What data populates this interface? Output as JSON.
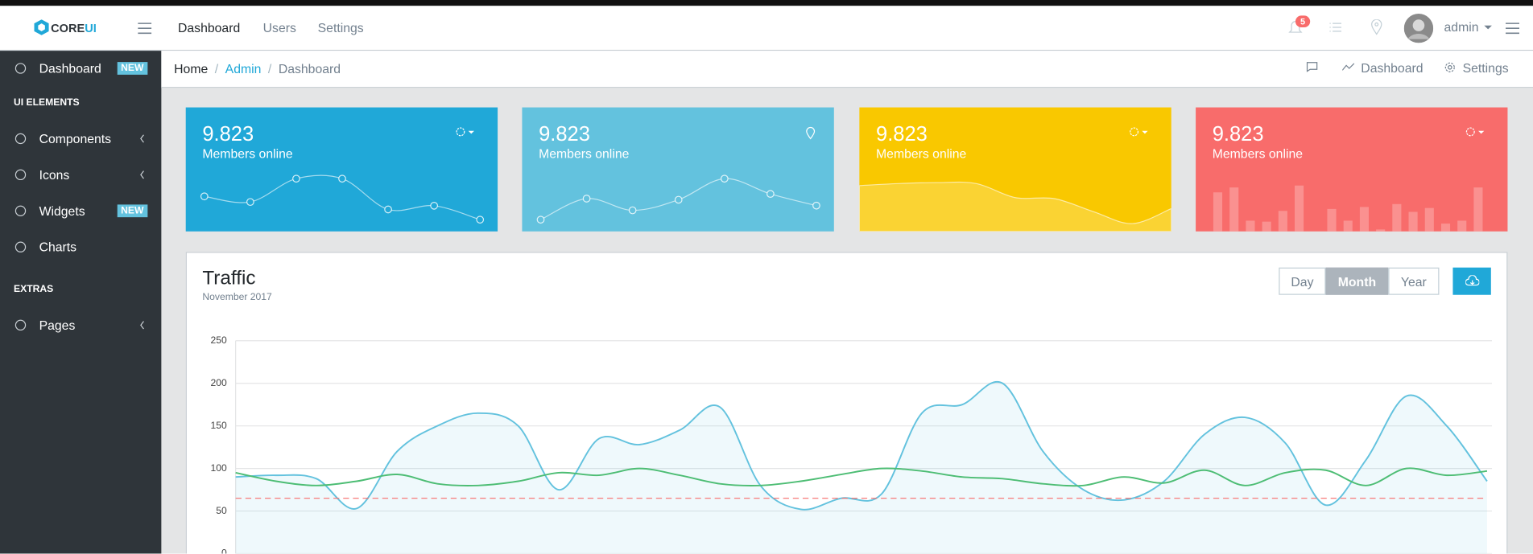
{
  "header": {
    "brand_main": "CORE",
    "brand_accent": "UI",
    "nav": [
      "Dashboard",
      "Users",
      "Settings"
    ],
    "notifications": "5",
    "user": "admin"
  },
  "sidebar": {
    "items": [
      {
        "label": "Dashboard",
        "badge": "NEW"
      },
      {
        "heading": "UI ELEMENTS"
      },
      {
        "label": "Components",
        "submenu": true
      },
      {
        "label": "Icons",
        "submenu": true
      },
      {
        "label": "Widgets",
        "badge": "NEW"
      },
      {
        "label": "Charts"
      },
      {
        "heading": "EXTRAS"
      },
      {
        "label": "Pages",
        "submenu": true
      }
    ]
  },
  "breadcrumb": [
    "Home",
    "Admin",
    "Dashboard"
  ],
  "breadcrumb_actions": [
    "Dashboard",
    "Settings"
  ],
  "cards": [
    {
      "value": "9.823",
      "label": "Members online",
      "color": "#20a8d8",
      "chart": "line",
      "values": [
        65,
        59,
        84,
        84,
        51,
        55,
        40
      ]
    },
    {
      "value": "9.823",
      "label": "Members online",
      "color": "#63c2de",
      "chart": "line",
      "values": [
        10,
        28,
        18,
        27,
        45,
        32,
        22
      ]
    },
    {
      "value": "9.823",
      "label": "Members online",
      "color": "#f9c800",
      "chart": "area",
      "values": [
        78,
        80,
        81,
        80,
        66,
        65,
        52,
        40,
        55
      ]
    },
    {
      "value": "9.823",
      "label": "Members online",
      "color": "#f86c6b",
      "chart": "bar",
      "values": [
        40,
        45,
        11,
        10,
        21,
        47,
        0,
        23,
        11,
        25,
        2,
        28,
        20,
        24,
        8,
        11,
        45
      ]
    }
  ],
  "traffic": {
    "title": "Traffic",
    "subtitle": "November 2017",
    "periods": [
      "Day",
      "Month",
      "Year"
    ],
    "active_period": 1
  },
  "chart_data": {
    "type": "line",
    "ylim": [
      0,
      250
    ],
    "yticks": [
      0,
      50,
      100,
      150,
      200,
      250
    ],
    "grid": true,
    "threshold": 65,
    "threshold_color": "#f86c6b",
    "series": [
      {
        "color": "#63c2de",
        "fill": true,
        "values": [
          90,
          92,
          88,
          53,
          120,
          150,
          165,
          150,
          75,
          135,
          128,
          145,
          172,
          80,
          52,
          65,
          70,
          165,
          175,
          200,
          120,
          75,
          63,
          85,
          140,
          160,
          130,
          57,
          110,
          185,
          150,
          85
        ]
      },
      {
        "color": "#4dbd74",
        "fill": false,
        "values": [
          95,
          85,
          80,
          85,
          93,
          82,
          80,
          85,
          95,
          92,
          100,
          92,
          82,
          80,
          85,
          93,
          100,
          97,
          90,
          88,
          82,
          80,
          90,
          83,
          98,
          80,
          95,
          98,
          80,
          100,
          92,
          97
        ]
      }
    ]
  }
}
